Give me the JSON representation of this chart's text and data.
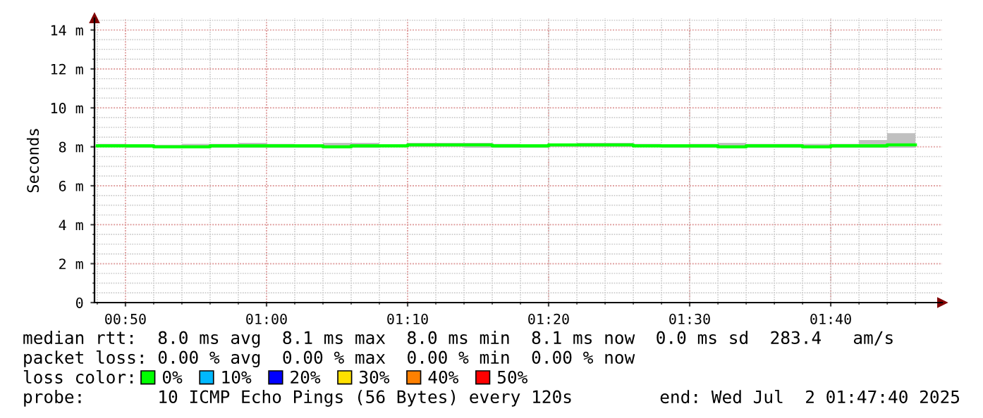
{
  "chart_data": {
    "type": "step",
    "ylabel": "Seconds",
    "x": [
      0.8,
      0.8333,
      0.8667,
      0.9,
      0.9333,
      0.9667,
      1.0,
      1.0333,
      1.0667,
      1.1,
      1.1333,
      1.1667,
      1.2,
      1.2333,
      1.2667,
      1.3,
      1.3333,
      1.3667,
      1.4,
      1.4333,
      1.4667,
      1.5,
      1.5333,
      1.5667,
      1.6,
      1.6333,
      1.6667,
      1.7,
      1.7333,
      1.7667
    ],
    "series": [
      {
        "name": "0%",
        "color": "#00ff00",
        "values": [
          8.05,
          8.05,
          8.0,
          8.0,
          8.05,
          8.05,
          8.05,
          8.05,
          8.0,
          8.05,
          8.05,
          8.1,
          8.1,
          8.1,
          8.05,
          8.05,
          8.1,
          8.1,
          8.1,
          8.05,
          8.05,
          8.05,
          8.0,
          8.05,
          8.05,
          8.0,
          8.05,
          8.05,
          8.1,
          8.1
        ],
        "lower": [
          8.0,
          7.95,
          7.95,
          7.95,
          7.95,
          7.95,
          7.95,
          7.95,
          7.95,
          7.95,
          8.0,
          8.0,
          8.0,
          7.95,
          7.95,
          7.95,
          8.0,
          8.0,
          8.0,
          8.0,
          7.95,
          7.95,
          7.95,
          7.95,
          7.95,
          7.95,
          7.95,
          7.95,
          7.95,
          7.95
        ],
        "upper": [
          8.15,
          8.1,
          8.1,
          8.15,
          8.15,
          8.2,
          8.15,
          8.1,
          8.2,
          8.2,
          8.1,
          8.2,
          8.2,
          8.2,
          8.15,
          8.1,
          8.15,
          8.2,
          8.2,
          8.15,
          8.1,
          8.15,
          8.2,
          8.15,
          8.15,
          8.15,
          8.15,
          8.35,
          8.7,
          8.7
        ]
      },
      {
        "name": "10%",
        "color": "#00b8ff",
        "values": [
          null,
          null,
          null,
          null,
          null,
          null,
          null,
          null,
          null,
          null,
          null,
          null,
          null,
          null,
          null,
          null,
          null,
          null,
          null,
          null,
          null,
          null,
          null,
          null,
          null,
          null,
          null,
          null,
          null,
          null
        ]
      },
      {
        "name": "20%",
        "color": "#0000ff",
        "values": [
          null,
          null,
          null,
          null,
          null,
          null,
          null,
          null,
          null,
          null,
          null,
          null,
          null,
          null,
          null,
          null,
          null,
          null,
          null,
          null,
          null,
          null,
          null,
          null,
          null,
          null,
          null,
          null,
          null,
          null
        ]
      },
      {
        "name": "30%",
        "color": "#ffe000",
        "values": [
          null,
          null,
          null,
          null,
          null,
          null,
          null,
          null,
          null,
          null,
          null,
          null,
          null,
          null,
          null,
          null,
          null,
          null,
          null,
          null,
          null,
          null,
          null,
          null,
          null,
          null,
          null,
          null,
          null,
          null
        ]
      },
      {
        "name": "40%",
        "color": "#ff8000",
        "values": [
          null,
          null,
          null,
          null,
          null,
          null,
          null,
          null,
          null,
          null,
          null,
          null,
          null,
          null,
          null,
          null,
          null,
          null,
          null,
          null,
          null,
          null,
          null,
          null,
          null,
          null,
          null,
          null,
          null,
          null
        ]
      },
      {
        "name": "50%",
        "color": "#ff0000",
        "values": [
          null,
          null,
          null,
          null,
          null,
          null,
          null,
          null,
          null,
          null,
          null,
          null,
          null,
          null,
          null,
          null,
          null,
          null,
          null,
          null,
          null,
          null,
          null,
          null,
          null,
          null,
          null,
          null,
          null,
          null
        ]
      }
    ],
    "legend_title": "loss color:",
    "legend": "bottom",
    "xlim": [
      0.7967,
      1.7983
    ],
    "xticks": [
      {
        "value": 0.8333,
        "label": "00:50"
      },
      {
        "value": 1.0,
        "label": "01:00"
      },
      {
        "value": 1.1667,
        "label": "01:10"
      },
      {
        "value": 1.3333,
        "label": "01:20"
      },
      {
        "value": 1.5,
        "label": "01:30"
      },
      {
        "value": 1.6667,
        "label": "01:40"
      }
    ],
    "ylim": [
      0,
      14.6
    ],
    "yticks": [
      0,
      {
        "value": 2,
        "label": "2 m"
      },
      {
        "value": 4,
        "label": "4 m"
      },
      {
        "value": 6,
        "label": "6 m"
      },
      {
        "value": 8,
        "label": "8 m"
      },
      {
        "value": 10,
        "label": "10 m"
      },
      {
        "value": 12,
        "label": "12 m"
      },
      {
        "value": 14,
        "label": "14 m"
      }
    ],
    "grid": true,
    "annotations": [
      "median rtt:  8.0 ms avg  8.1 ms max  8.0 ms min  8.1 ms now  0.0 ms sd  283.4   am/s",
      "packet loss: 0.00 % avg  0.00 % max  0.00 % min  0.00 % now",
      "probe:       10 ICMP Echo Pings (56 Bytes) every 120s",
      "end: Wed Jul  2 01:47:40 2025"
    ]
  }
}
